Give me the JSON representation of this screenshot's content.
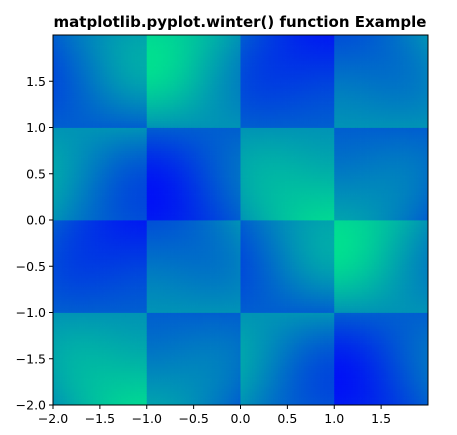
{
  "chart_data": {
    "type": "heatmap",
    "title": "matplotlib.pyplot.winter() function Example",
    "colormap": "winter",
    "interpolation": "bilinear",
    "colormap_range": {
      "start": "#0000ff",
      "end": "#00ff80"
    },
    "xlim": [
      -2.0,
      2.0
    ],
    "ylim": [
      -2.0,
      2.0
    ],
    "x_ticks": [
      -2.0,
      -1.5,
      -1.0,
      -0.5,
      0.0,
      0.5,
      1.0,
      1.5
    ],
    "x_tick_labels": [
      "−2.0",
      "−1.5",
      "−1.0",
      "−0.5",
      "0.0",
      "0.5",
      "1.0",
      "1.5"
    ],
    "y_ticks": [
      -2.0,
      -1.5,
      -1.0,
      -0.5,
      0.0,
      0.5,
      1.0,
      1.5
    ],
    "y_tick_labels": [
      "−2.0",
      "−1.5",
      "−1.0",
      "−0.5",
      "0.0",
      "0.5",
      "1.0",
      "1.5"
    ],
    "grid": false,
    "xlabel": "",
    "ylabel": ""
  }
}
